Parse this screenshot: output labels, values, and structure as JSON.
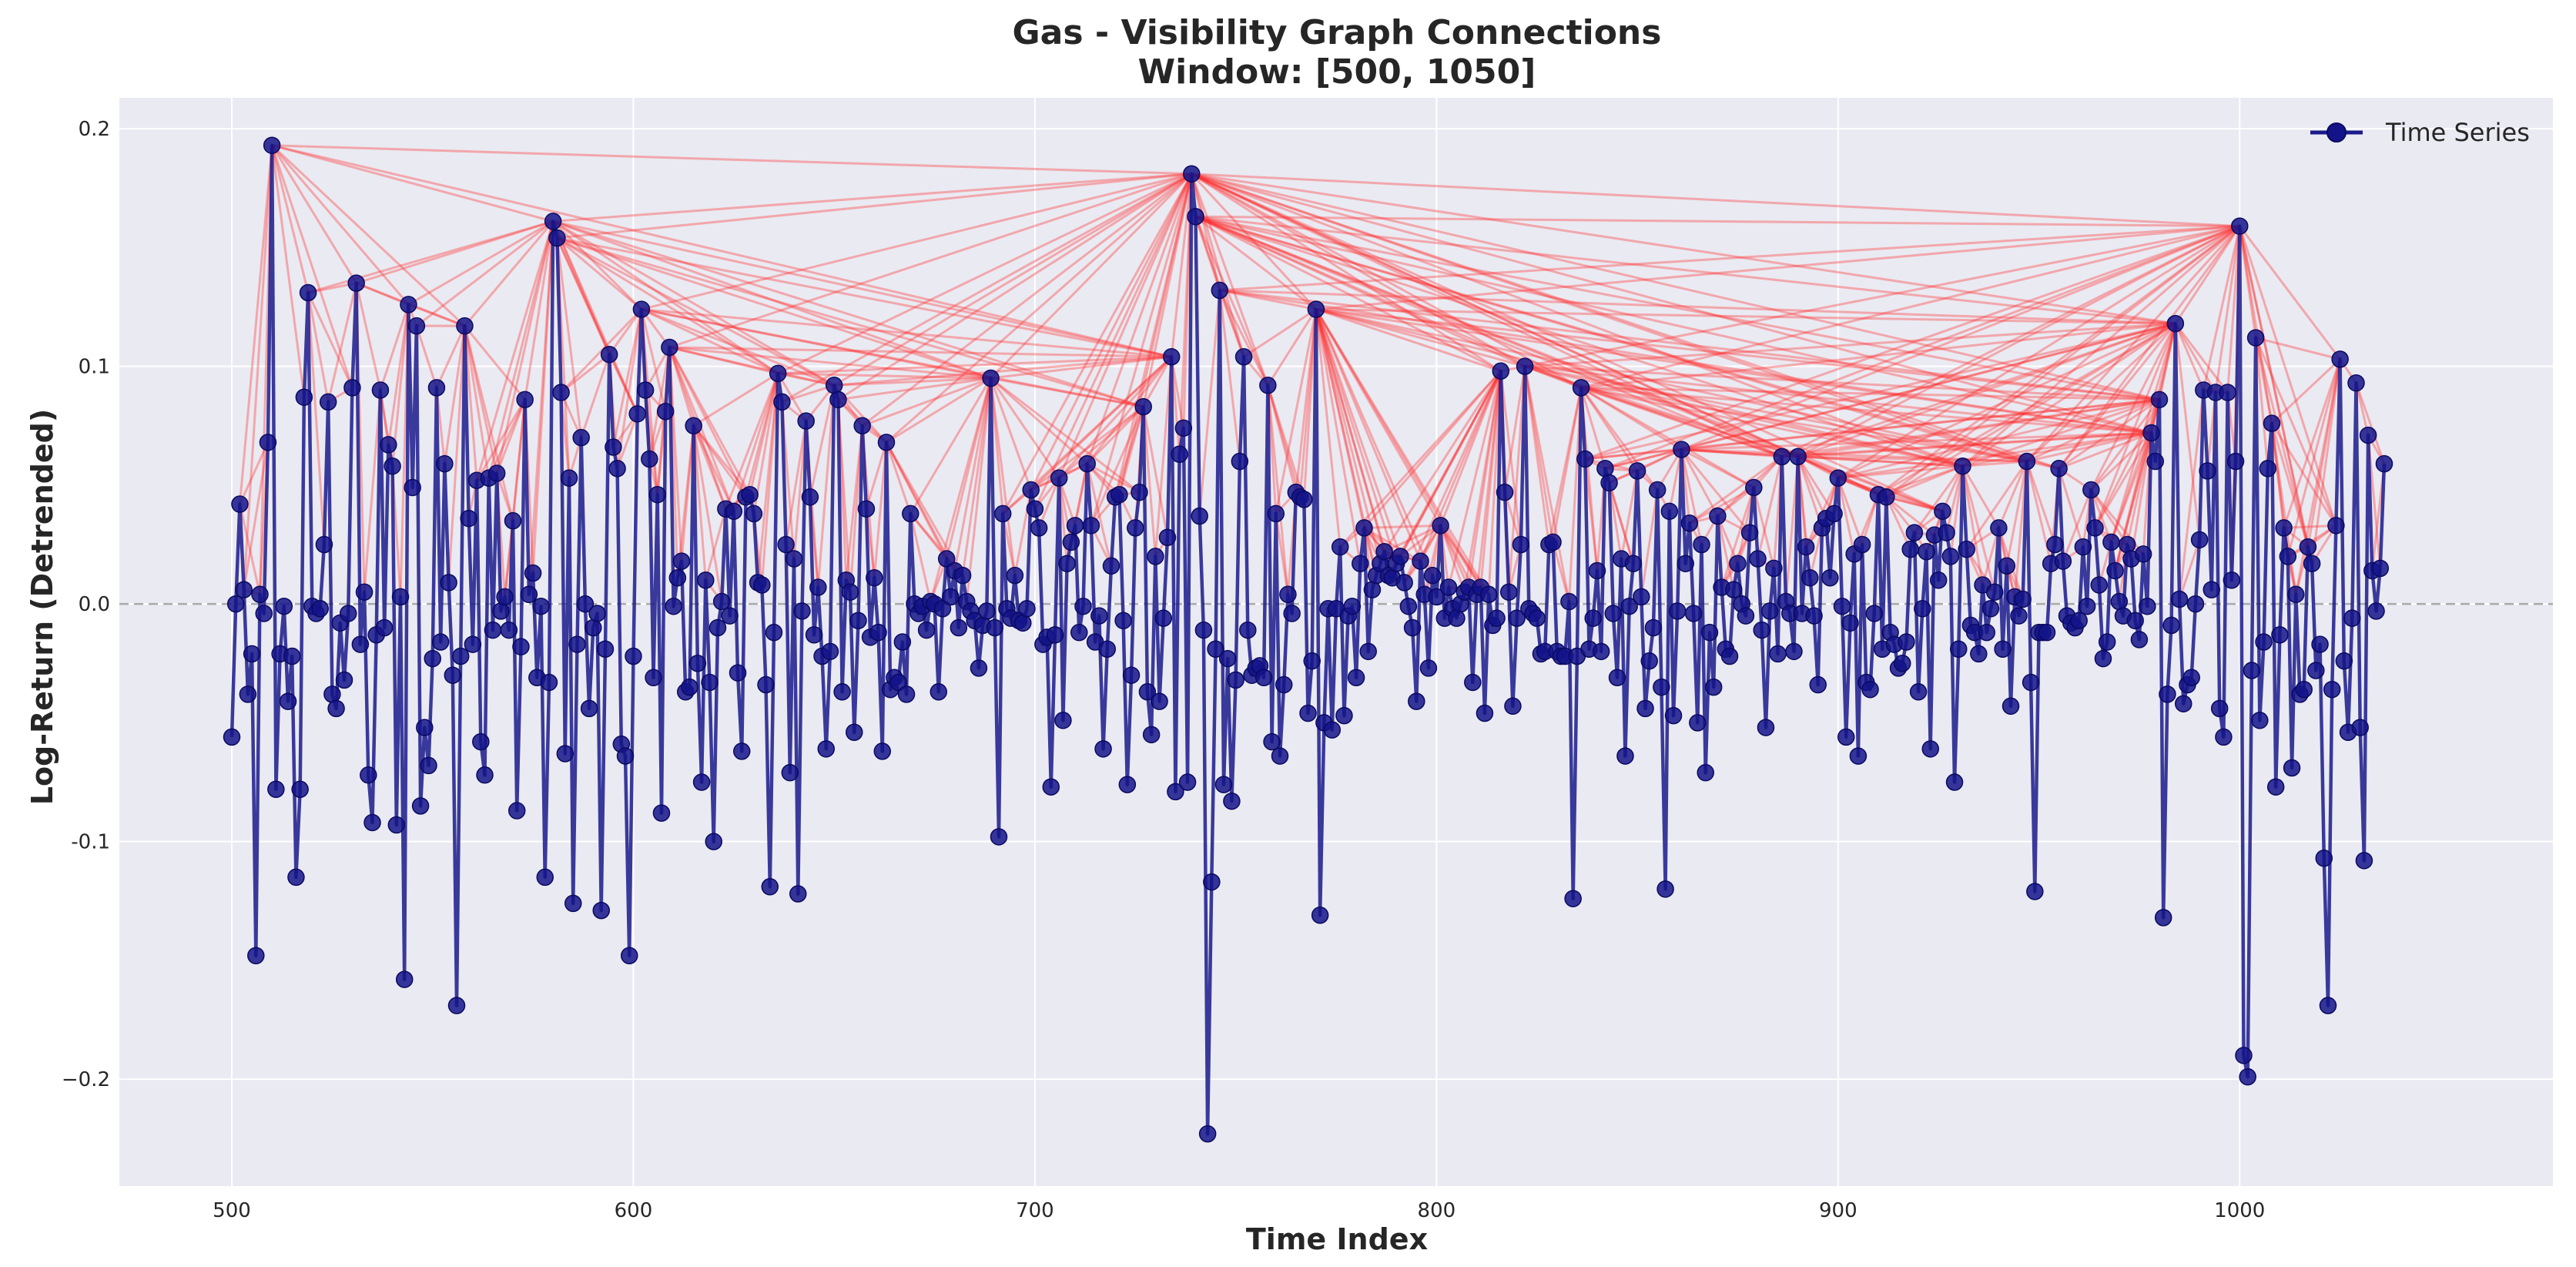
{
  "chart_data": {
    "type": "line",
    "title": "Gas - Visibility Graph Connections",
    "subtitle": "Window: [500, 1050]",
    "xlabel": "Time Index",
    "ylabel": "Log-Return (Detrended)",
    "xlim": [
      472,
      1078
    ],
    "ylim": [
      -0.245,
      0.213
    ],
    "xticks": [
      500,
      600,
      700,
      800,
      900,
      1000
    ],
    "yticks": [
      0.2,
      0.1,
      0.0,
      -0.1,
      -0.2
    ],
    "ytick_labels": [
      "0.2",
      "0.1",
      "0.0",
      "-0.1",
      "−0.2"
    ],
    "grid": true,
    "zero_reference_line": 0.0,
    "legend": {
      "entries": [
        "Time Series"
      ],
      "placement": "top-right"
    },
    "colors": {
      "series": "#1a1a8c",
      "marker": "#14148a",
      "edges": "#ff2a2a",
      "background": "#eaeaf2",
      "grid": "#ffffff",
      "zero_line": "#aaaaaa"
    },
    "x_start": 500,
    "series": [
      {
        "name": "Time Series",
        "values": [
          -0.056,
          0.0,
          0.042,
          0.006,
          -0.038,
          -0.021,
          -0.148,
          0.004,
          -0.004,
          0.068,
          0.193,
          -0.078,
          -0.021,
          -0.001,
          -0.041,
          -0.022,
          -0.115,
          -0.078,
          0.087,
          0.131,
          -0.001,
          -0.004,
          -0.002,
          0.025,
          0.085,
          -0.038,
          -0.044,
          -0.008,
          -0.032,
          -0.004,
          0.091,
          0.135,
          -0.017,
          0.005,
          -0.072,
          -0.092,
          -0.013,
          0.09,
          -0.01,
          0.067,
          0.058,
          -0.093,
          0.003,
          -0.158,
          0.126,
          0.049,
          0.117,
          -0.085,
          -0.052,
          -0.068,
          -0.023,
          0.091,
          -0.016,
          0.059,
          0.009,
          -0.03,
          -0.169,
          -0.022,
          0.117,
          0.036,
          -0.017,
          0.052,
          -0.058,
          -0.072,
          0.053,
          -0.011,
          0.055,
          -0.003,
          0.003,
          -0.011,
          0.035,
          -0.087,
          -0.018,
          0.086,
          0.004,
          0.013,
          -0.031,
          -0.001,
          -0.115,
          -0.033,
          0.161,
          0.154,
          0.089,
          -0.063,
          0.053,
          -0.126,
          -0.017,
          0.07,
          0.0,
          -0.044,
          -0.01,
          -0.004,
          -0.129,
          -0.019,
          0.105,
          0.066,
          0.057,
          -0.059,
          -0.064,
          -0.148,
          -0.022,
          0.08,
          0.124,
          0.09,
          0.061,
          -0.031,
          0.046,
          -0.088,
          0.081,
          0.108,
          -0.001,
          0.011,
          0.018,
          -0.037,
          -0.035,
          0.075,
          -0.025,
          -0.075,
          0.01,
          -0.033,
          -0.1,
          -0.01,
          0.001,
          0.04,
          -0.005,
          0.039,
          -0.029,
          -0.062,
          0.045,
          0.046,
          0.038,
          0.009,
          0.008,
          -0.034,
          -0.119,
          -0.012,
          0.097,
          0.085,
          0.025,
          -0.071,
          0.019,
          -0.122,
          -0.003,
          0.077,
          0.045,
          -0.013,
          0.007,
          -0.022,
          -0.061,
          -0.02,
          0.092,
          0.086,
          -0.037,
          0.01,
          0.005,
          -0.054,
          -0.007,
          0.075,
          0.04,
          -0.014,
          0.011,
          -0.012,
          -0.062,
          0.068,
          -0.036,
          -0.031,
          -0.033,
          -0.016,
          -0.038,
          0.038,
          0.0,
          -0.004,
          -0.001,
          -0.011,
          0.001,
          0.0,
          -0.037,
          -0.002,
          0.019,
          0.003,
          0.014,
          -0.01,
          0.012,
          0.001,
          -0.003,
          -0.007,
          -0.027,
          -0.009,
          -0.003,
          0.095,
          -0.01,
          -0.098,
          0.038,
          -0.002,
          -0.006,
          0.012,
          -0.007,
          -0.008,
          -0.002,
          0.048,
          0.04,
          0.032,
          -0.017,
          -0.014,
          -0.077,
          -0.013,
          0.053,
          -0.049,
          0.017,
          0.026,
          0.033,
          -0.012,
          -0.001,
          0.059,
          0.033,
          -0.016,
          -0.005,
          -0.061,
          -0.019,
          0.016,
          0.045,
          0.046,
          -0.007,
          -0.076,
          -0.03,
          0.032,
          0.047,
          0.083,
          -0.037,
          -0.055,
          0.02,
          -0.041,
          -0.006,
          0.028,
          0.104,
          -0.079,
          0.063,
          0.074,
          -0.075,
          0.181,
          0.163,
          0.037,
          -0.011,
          -0.223,
          -0.117,
          -0.019,
          0.132,
          -0.076,
          -0.023,
          -0.083,
          -0.032,
          0.06,
          0.104,
          -0.011,
          -0.03,
          -0.027,
          -0.026,
          -0.031,
          0.092,
          -0.058,
          0.038,
          -0.064,
          -0.034,
          0.004,
          -0.004,
          0.047,
          0.045,
          0.044,
          -0.046,
          -0.024,
          0.124,
          -0.131,
          -0.05,
          -0.002,
          -0.053,
          -0.002,
          0.024,
          -0.047,
          -0.005,
          -0.001,
          -0.031,
          0.017,
          0.032,
          -0.02,
          0.006,
          0.012,
          0.017,
          0.022,
          0.012,
          0.011,
          0.017,
          0.02,
          0.009,
          -0.001,
          -0.01,
          -0.041,
          0.018,
          0.004,
          -0.027,
          0.012,
          0.003,
          0.033,
          -0.006,
          0.007,
          -0.002,
          -0.006,
          0.0,
          0.005,
          0.007,
          -0.033,
          0.004,
          0.007,
          -0.046,
          0.004,
          -0.009,
          -0.006,
          0.098,
          0.047,
          0.005,
          -0.043,
          -0.006,
          0.025,
          0.1,
          -0.002,
          -0.004,
          -0.006,
          -0.021,
          -0.02,
          0.025,
          0.026,
          -0.02,
          -0.022,
          -0.022,
          0.001,
          -0.124,
          -0.022,
          0.091,
          0.061,
          -0.019,
          -0.006,
          0.014,
          -0.02,
          0.057,
          0.051,
          -0.004,
          -0.031,
          0.019,
          -0.064,
          -0.001,
          0.017,
          0.056,
          0.003,
          -0.044,
          -0.024,
          -0.01,
          0.048,
          -0.035,
          -0.12,
          0.039,
          -0.047,
          -0.003,
          0.065,
          0.017,
          0.034,
          -0.004,
          -0.05,
          0.025,
          -0.071,
          -0.012,
          -0.035,
          0.037,
          0.007,
          -0.019,
          -0.022,
          0.006,
          0.017,
          0.0,
          -0.005,
          0.03,
          0.049,
          0.019,
          -0.011,
          -0.052,
          -0.003,
          0.015,
          -0.021,
          0.062,
          0.001,
          -0.004,
          -0.02,
          0.062,
          -0.004,
          0.024,
          0.011,
          -0.005,
          -0.034,
          0.032,
          0.036,
          0.011,
          0.038,
          0.053,
          -0.001,
          -0.056,
          -0.008,
          0.021,
          -0.064,
          0.025,
          -0.033,
          -0.036,
          -0.004,
          0.046,
          -0.019,
          0.045,
          -0.012,
          -0.017,
          -0.027,
          -0.025,
          -0.016,
          0.023,
          0.03,
          -0.037,
          -0.002,
          0.022,
          -0.061,
          0.029,
          0.01,
          0.039,
          0.03,
          0.02,
          -0.075,
          -0.019,
          0.058,
          0.023,
          -0.009,
          -0.012,
          -0.021,
          0.008,
          -0.012,
          -0.002,
          0.005,
          0.032,
          -0.019,
          0.016,
          -0.043,
          0.003,
          -0.005,
          0.002,
          0.06,
          -0.033,
          -0.121,
          -0.012,
          -0.012,
          -0.012,
          0.017,
          0.025,
          0.057,
          0.018,
          -0.005,
          -0.008,
          -0.01,
          -0.007,
          0.024,
          -0.001,
          0.048,
          0.032,
          0.008,
          -0.023,
          -0.016,
          0.026,
          0.014,
          0.001,
          -0.005,
          0.025,
          0.019,
          -0.007,
          -0.015,
          0.021,
          -0.001,
          0.072,
          0.06,
          0.086,
          -0.132,
          -0.038,
          -0.009,
          0.118,
          0.002,
          -0.042,
          -0.034,
          -0.031,
          0.0,
          0.027,
          0.09,
          0.056,
          0.006,
          0.089,
          -0.044,
          -0.056,
          0.089,
          0.01,
          0.06,
          0.159,
          -0.19,
          -0.199,
          -0.028,
          0.112,
          -0.049,
          -0.016,
          0.057,
          0.076,
          -0.077,
          -0.013,
          0.032,
          0.02,
          -0.069,
          0.004,
          -0.038,
          -0.036,
          0.024,
          0.017,
          -0.028,
          -0.017,
          -0.107,
          -0.169,
          -0.036,
          0.033,
          0.103,
          -0.024,
          -0.054,
          -0.006,
          0.093,
          -0.052,
          -0.108,
          0.071,
          0.014,
          -0.003,
          0.015,
          0.059
        ]
      }
    ]
  }
}
